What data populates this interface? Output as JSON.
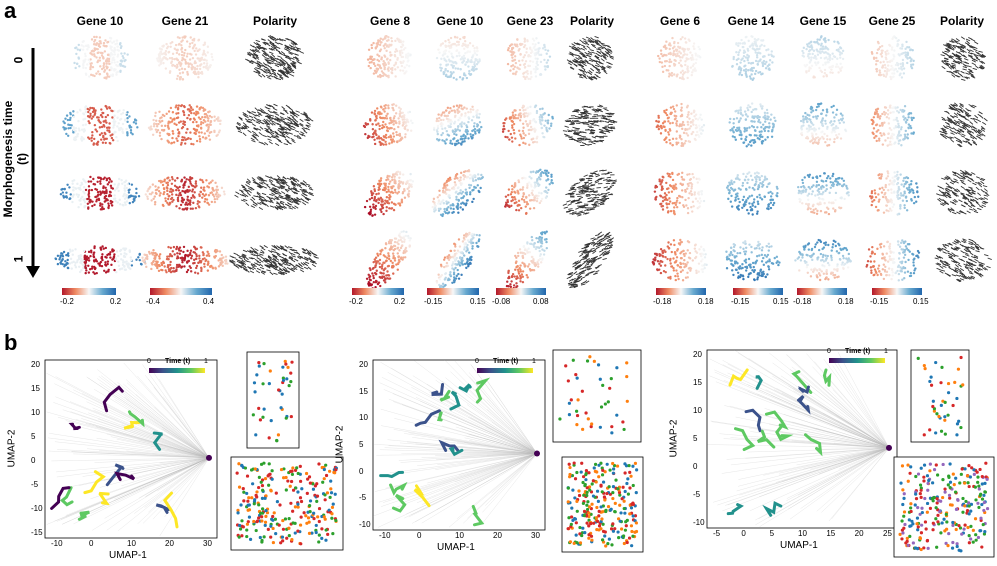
{
  "panel_a": {
    "letter": "a",
    "y_axis_label": "Morphogenesis time (t)",
    "y_ticks": [
      "0",
      "1"
    ],
    "groups": [
      {
        "headers": [
          "Gene 10",
          "Gene 21",
          "Polarity"
        ],
        "colorbars": [
          {
            "min": "-0.2",
            "max": "0.2"
          },
          {
            "min": "-0.4",
            "max": "0.4"
          }
        ]
      },
      {
        "headers": [
          "Gene 8",
          "Gene 10",
          "Gene 23",
          "Polarity"
        ],
        "colorbars": [
          {
            "min": "-0.2",
            "max": "0.2"
          },
          {
            "min": "-0.15",
            "max": "0.15"
          },
          {
            "min": "-0.08",
            "max": "0.08"
          }
        ]
      },
      {
        "headers": [
          "Gene 6",
          "Gene 14",
          "Gene 15",
          "Gene 25",
          "Polarity"
        ],
        "colorbars": [
          {
            "min": "-0.18",
            "max": "0.18"
          },
          {
            "min": "-0.15",
            "max": "0.15"
          },
          {
            "min": "-0.18",
            "max": "0.18"
          },
          {
            "min": "-0.15",
            "max": "0.15"
          }
        ]
      }
    ]
  },
  "panel_b": {
    "letter": "b",
    "time_legend": {
      "left": "0",
      "title": "Time (t)",
      "right": "1"
    },
    "umaps": [
      {
        "xlabel": "UMAP-1",
        "ylabel": "UMAP-2",
        "xticks": [
          "-10",
          "0",
          "10",
          "20",
          "30"
        ],
        "yticks": [
          "20",
          "15",
          "10",
          "5",
          "0",
          "-5",
          "-10",
          "-15"
        ]
      },
      {
        "xlabel": "UMAP-1",
        "ylabel": "UMAP-2",
        "xticks": [
          "-10",
          "0",
          "10",
          "20",
          "30"
        ],
        "yticks": [
          "20",
          "15",
          "10",
          "5",
          "0",
          "-5",
          "-10"
        ]
      },
      {
        "xlabel": "UMAP-1",
        "ylabel": "UMAP-2",
        "xticks": [
          "-5",
          "0",
          "5",
          "10",
          "15",
          "20",
          "25"
        ],
        "yticks": [
          "20",
          "15",
          "10",
          "5",
          "0",
          "-5",
          "-10"
        ]
      }
    ]
  },
  "colors": {
    "red": "#b2182b",
    "blue": "#2166ac",
    "orange": "#ff7f0e",
    "green": "#2ca02c",
    "cluster_blue": "#1f77b4",
    "cluster_red": "#d62728",
    "purple": "#9467bd"
  }
}
